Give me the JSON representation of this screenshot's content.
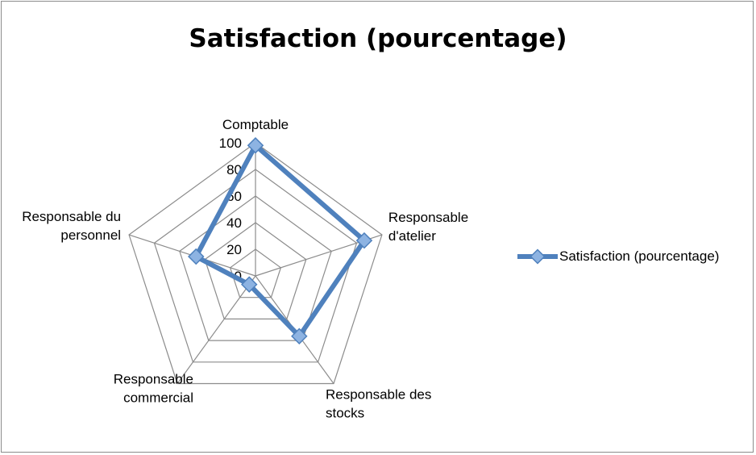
{
  "chart_data": {
    "type": "radar",
    "title": "Satisfaction (pourcentage)",
    "categories": [
      [
        "Comptable"
      ],
      [
        "Responsable",
        "d'atelier"
      ],
      [
        "Responsable des",
        "stocks"
      ],
      [
        "Responsable",
        "commercial"
      ],
      [
        "Responsable du",
        "personnel"
      ]
    ],
    "series": [
      {
        "name": "Satisfaction (pourcentage)",
        "values": [
          98,
          86,
          56,
          8,
          47
        ]
      }
    ],
    "rlim": [
      0,
      100
    ],
    "ticks": [
      "0",
      "20",
      "40",
      "60",
      "80",
      "100"
    ],
    "legend_position": "right",
    "colors": {
      "series": "#4f81bd",
      "marker": "#8db3e2",
      "grid": "#8c8c8c"
    }
  }
}
